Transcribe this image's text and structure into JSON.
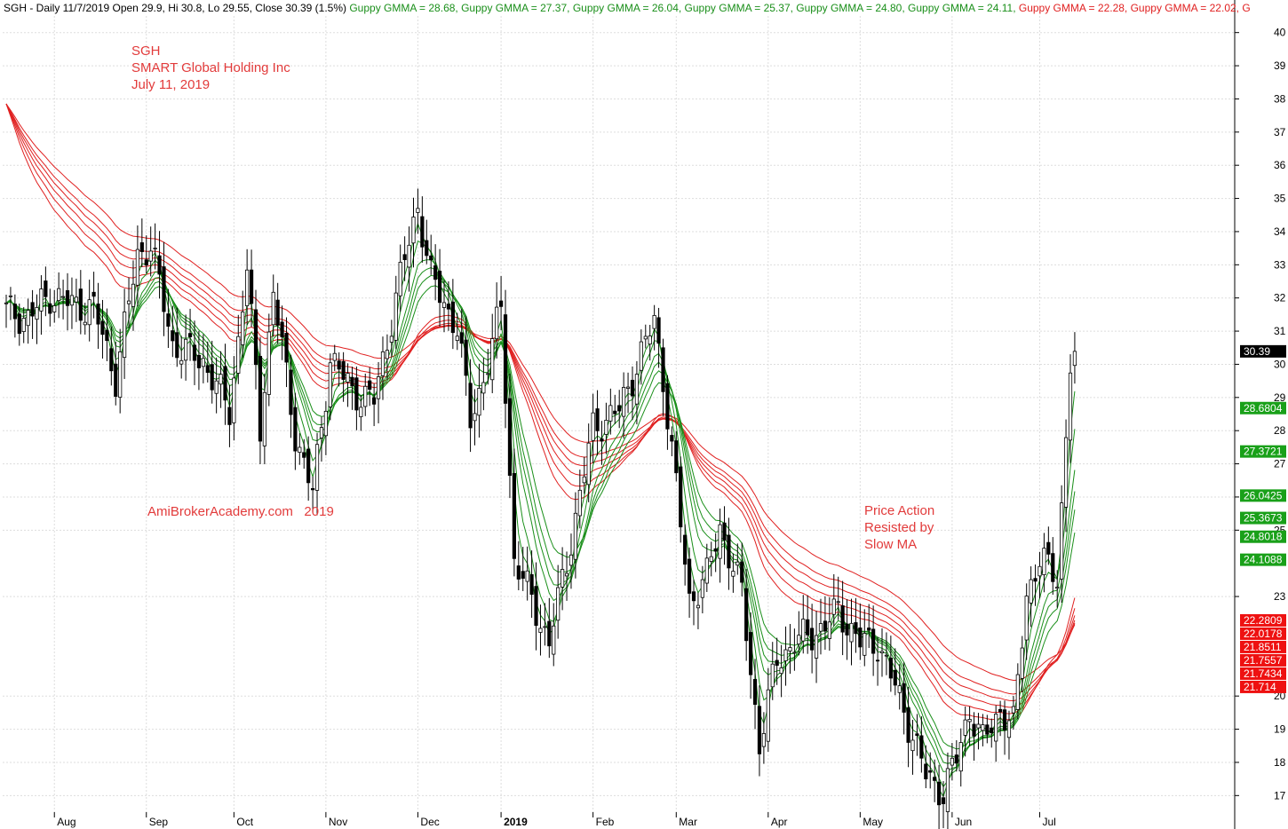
{
  "header": {
    "segments": [
      {
        "text": "SGH - Daily 11/7/2019 Open 29.9, Hi 30.8, Lo 29.55, Close 30.39 (1.5%)",
        "color": "#000000"
      },
      {
        "text": "Guppy GMMA = 28.68,",
        "color": "#1a8f1a"
      },
      {
        "text": "Guppy GMMA = 27.37,",
        "color": "#1a8f1a"
      },
      {
        "text": "Guppy GMMA = 26.04,",
        "color": "#1a8f1a"
      },
      {
        "text": "Guppy GMMA = 25.37,",
        "color": "#1a8f1a"
      },
      {
        "text": "Guppy GMMA = 24.80,",
        "color": "#1a8f1a"
      },
      {
        "text": "Guppy GMMA = 24.11,",
        "color": "#1a8f1a"
      },
      {
        "text": "Guppy GMMA = 22.28,",
        "color": "#e02020"
      },
      {
        "text": "Guppy GMMA = 22.02, G",
        "color": "#e02020"
      }
    ]
  },
  "notes": {
    "ticker": "SGH",
    "company": "SMART Global Holding Inc",
    "date": "July 11, 2019",
    "watermark": "AmiBrokerAcademy.com   2019",
    "annotation_line1": "Price Action",
    "annotation_line2": "Resisted by",
    "annotation_line3": "Slow MA"
  },
  "colors": {
    "fast_ma": "#1a8f1a",
    "slow_ma": "#e02020",
    "candle": "#000000",
    "note": "#e23b3b",
    "grid": "#dddddd"
  },
  "chart_data": {
    "type": "candlestick",
    "title": "",
    "ylim": [
      16.5,
      40.5
    ],
    "grid": true,
    "y_ticks": [
      "17",
      "18",
      "19",
      "20",
      "23",
      "25",
      "26",
      "27",
      "28",
      "29",
      "30",
      "31",
      "32",
      "33",
      "34",
      "35",
      "36",
      "37",
      "38",
      "39",
      "40"
    ],
    "x_labels": [
      {
        "label": "Aug",
        "bar": 11
      },
      {
        "label": "Sep",
        "bar": 32
      },
      {
        "label": "Oct",
        "bar": 52
      },
      {
        "label": "Nov",
        "bar": 73
      },
      {
        "label": "Dec",
        "bar": 94
      },
      {
        "label": "2019",
        "bar": 113,
        "bold": true
      },
      {
        "label": "Feb",
        "bar": 134
      },
      {
        "label": "Mar",
        "bar": 153
      },
      {
        "label": "Apr",
        "bar": 174
      },
      {
        "label": "May",
        "bar": 195
      },
      {
        "label": "Jun",
        "bar": 216
      },
      {
        "label": "Jul",
        "bar": 236
      }
    ],
    "close_anchors": [
      [
        0,
        31.6
      ],
      [
        5,
        31.4
      ],
      [
        10,
        32.1
      ],
      [
        15,
        31.8
      ],
      [
        20,
        31.7
      ],
      [
        25,
        29.6
      ],
      [
        30,
        33.3
      ],
      [
        33,
        33.6
      ],
      [
        38,
        30.6
      ],
      [
        45,
        30.1
      ],
      [
        51,
        28.6
      ],
      [
        55,
        32.9
      ],
      [
        58,
        28.1
      ],
      [
        61,
        32.2
      ],
      [
        66,
        27.9
      ],
      [
        70,
        26.1
      ],
      [
        74,
        30.2
      ],
      [
        79,
        29.2
      ],
      [
        84,
        28.9
      ],
      [
        90,
        32.6
      ],
      [
        94,
        34.8
      ],
      [
        97,
        32.6
      ],
      [
        103,
        31.1
      ],
      [
        106,
        28.3
      ],
      [
        111,
        30.5
      ],
      [
        113,
        31.8
      ],
      [
        116,
        24.1
      ],
      [
        121,
        22.6
      ],
      [
        124,
        21.6
      ],
      [
        129,
        24.7
      ],
      [
        134,
        28.1
      ],
      [
        140,
        28.6
      ],
      [
        145,
        30.3
      ],
      [
        148,
        31.3
      ],
      [
        150,
        29.6
      ],
      [
        153,
        26.3
      ],
      [
        156,
        22.9
      ],
      [
        160,
        23.6
      ],
      [
        163,
        25.1
      ],
      [
        168,
        23.1
      ],
      [
        172,
        18.5
      ],
      [
        176,
        21.1
      ],
      [
        180,
        21.6
      ],
      [
        187,
        22.1
      ],
      [
        190,
        22.6
      ],
      [
        195,
        21.6
      ],
      [
        199,
        21.6
      ],
      [
        205,
        19.6
      ],
      [
        210,
        17.6
      ],
      [
        214,
        17.1
      ],
      [
        217,
        18.1
      ],
      [
        220,
        19.6
      ],
      [
        223,
        18.6
      ],
      [
        227,
        19.6
      ],
      [
        230,
        19.1
      ],
      [
        233,
        23.1
      ],
      [
        236,
        24.1
      ],
      [
        240,
        23.6
      ],
      [
        243,
        30.0
      ],
      [
        244,
        30.39
      ]
    ],
    "bar_count": 245,
    "last_close": 30.39,
    "gmma_periods": {
      "fast": [
        3,
        5,
        8,
        10,
        12,
        15
      ],
      "slow": [
        30,
        35,
        40,
        45,
        50,
        60
      ]
    },
    "fast_ma_tags": [
      "28.6804",
      "27.3721",
      "26.0425",
      "25.3673",
      "24.8018",
      "24.1088"
    ],
    "slow_ma_tags": [
      "22.2809",
      "22.0178",
      "21.8511",
      "21.7557",
      "21.7434",
      "21.714"
    ],
    "last_close_tag": "30.39"
  }
}
